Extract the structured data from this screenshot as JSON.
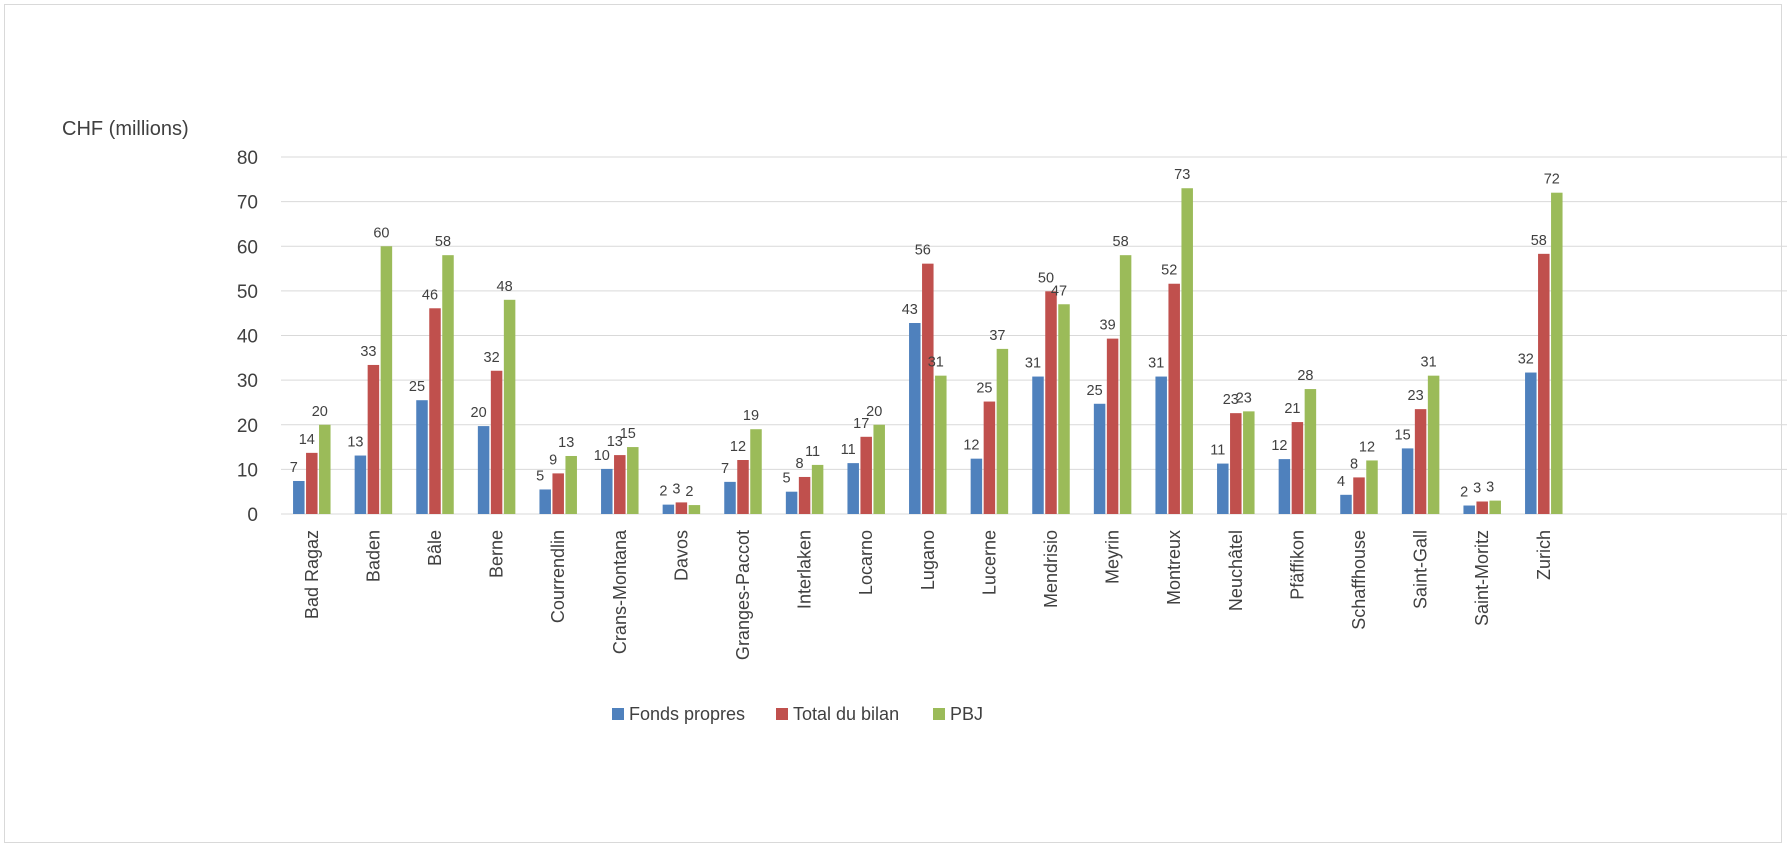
{
  "chart_data": {
    "type": "bar",
    "title": "",
    "ylabel": "CHF (millions)",
    "xlabel": "",
    "ylim": [
      0,
      80
    ],
    "yticks": [
      0,
      10,
      20,
      30,
      40,
      50,
      60,
      70,
      80
    ],
    "grid": true,
    "legend_position": "bottom",
    "categories": [
      "Bad Ragaz",
      "Baden",
      "Bâle",
      "Berne",
      "Courrendlin",
      "Crans-Montana",
      "Davos",
      "Granges-Paccot",
      "Interlaken",
      "Locarno",
      "Lugano",
      "Lucerne",
      "Mendrisio",
      "Meyrin",
      "Montreux",
      "Neuchâtel",
      "Pfäffikon",
      "Schaffhouse",
      "Saint-Gall",
      "Saint-Moritz",
      "Zurich"
    ],
    "series": [
      {
        "name": "Fonds propres",
        "color": "#4f81bd",
        "values": [
          7.4,
          13.1,
          25.5,
          19.7,
          5.5,
          10.1,
          2.1,
          7.2,
          5.0,
          11.4,
          42.8,
          12.4,
          30.8,
          24.7,
          30.8,
          11.3,
          12.3,
          4.3,
          14.7,
          1.9,
          31.7
        ],
        "labels": [
          "7",
          "13",
          "25",
          "20",
          "5",
          "10",
          "2",
          "7",
          "5",
          "11",
          "43",
          "12",
          "31",
          "25",
          "31",
          "11",
          "12",
          "4",
          "15",
          "2",
          "32"
        ]
      },
      {
        "name": "Total du bilan",
        "color": "#c0504d",
        "values": [
          13.7,
          33.4,
          46.1,
          32.1,
          9.1,
          13.2,
          2.6,
          12.1,
          8.3,
          17.3,
          56.1,
          25.2,
          49.9,
          39.3,
          51.6,
          22.6,
          20.6,
          8.2,
          23.5,
          2.8,
          58.3
        ],
        "labels": [
          "14",
          "33",
          "46",
          "32",
          "9",
          "13",
          "3",
          "12",
          "8",
          "17",
          "56",
          "25",
          "50",
          "39",
          "52",
          "23",
          "21",
          "8",
          "23",
          "3",
          "58"
        ]
      },
      {
        "name": "PBJ",
        "color": "#9bbb59",
        "values": [
          20,
          60,
          58,
          48,
          13,
          15,
          2,
          19,
          11,
          20,
          31,
          37,
          47,
          58,
          73,
          23,
          28,
          12,
          31,
          3,
          72
        ],
        "labels": [
          "20",
          "60",
          "58",
          "48",
          "13",
          "15",
          "2",
          "19",
          "11",
          "20",
          "31",
          "37",
          "47",
          "58",
          "73",
          "23",
          "28",
          "12",
          "31",
          "3",
          "72"
        ]
      }
    ]
  }
}
